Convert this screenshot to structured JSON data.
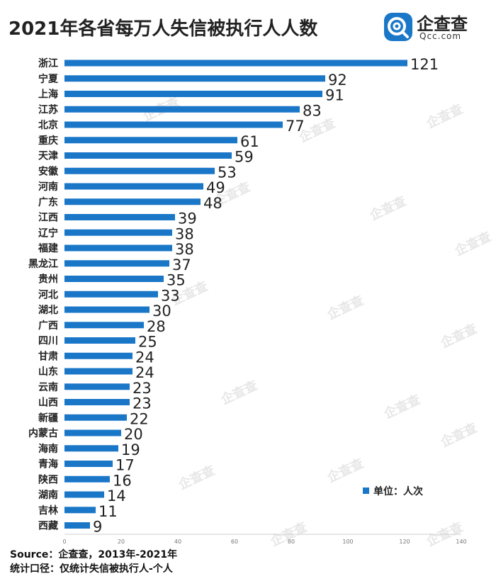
{
  "title": "2021年各省每万人失信被执行人人数",
  "brand": {
    "name": "企查查",
    "domain": "Qcc.com",
    "watermark": "企查查",
    "color": "#1a77c8"
  },
  "legend": {
    "label": "单位：人次"
  },
  "footer": {
    "source": "Source：企查查，2013年-2021年",
    "note": "统计口径：仅统计失信被执行人-个人"
  },
  "chart_data": {
    "type": "bar",
    "orientation": "horizontal",
    "categories": [
      "浙江",
      "宁夏",
      "上海",
      "江苏",
      "北京",
      "重庆",
      "天津",
      "安徽",
      "河南",
      "广东",
      "江西",
      "辽宁",
      "福建",
      "黑龙江",
      "贵州",
      "河北",
      "湖北",
      "广西",
      "四川",
      "甘肃",
      "山东",
      "云南",
      "山西",
      "新疆",
      "内蒙古",
      "海南",
      "青海",
      "陕西",
      "湖南",
      "吉林",
      "西藏"
    ],
    "series": [
      {
        "name": "人次",
        "color": "#1a77c8",
        "values": [
          121,
          92,
          91,
          83,
          77,
          61,
          59,
          53,
          49,
          48,
          39,
          38,
          38,
          37,
          35,
          33,
          30,
          28,
          25,
          24,
          24,
          23,
          23,
          22,
          20,
          19,
          17,
          16,
          14,
          11,
          9
        ]
      }
    ],
    "xlim": [
      0,
      140
    ],
    "xticks": [
      0,
      20,
      40,
      60,
      80,
      100,
      120,
      140
    ],
    "grid": false,
    "legend_position": "bottom-right"
  }
}
